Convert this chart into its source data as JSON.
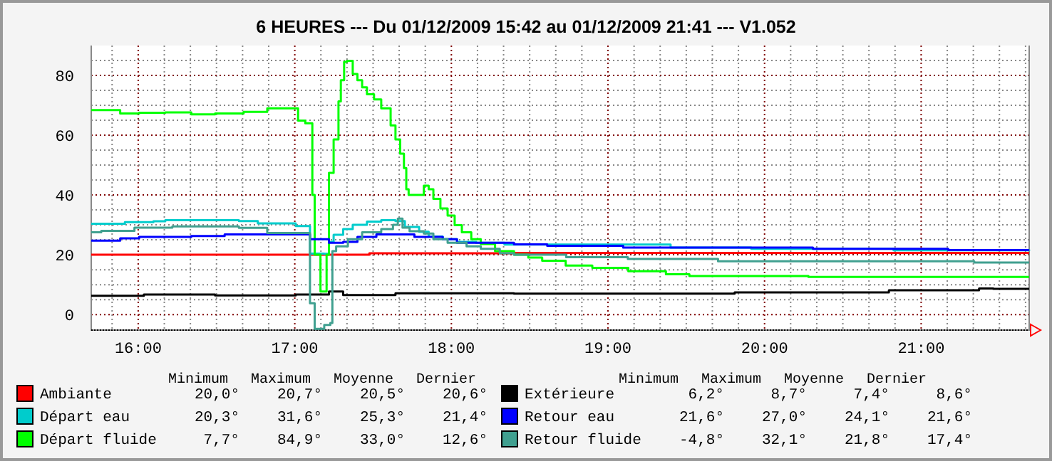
{
  "chart_data": {
    "type": "step",
    "title": "6 HEURES --- Du 01/12/2009 15:42 au 01/12/2009 21:41 --- V1.052",
    "xlim": [
      15.7,
      21.69
    ],
    "ylim": [
      -5.2,
      90
    ],
    "xticks": [
      {
        "value": 15.8333,
        "label": null
      },
      {
        "value": 16,
        "label": "16:00"
      },
      {
        "value": 16.1667,
        "label": null
      },
      {
        "value": 16.3333,
        "label": null
      },
      {
        "value": 16.5,
        "label": null
      },
      {
        "value": 16.6667,
        "label": null
      },
      {
        "value": 16.8333,
        "label": null
      },
      {
        "value": 17,
        "label": "17:00"
      },
      {
        "value": 17.1667,
        "label": null
      },
      {
        "value": 17.3333,
        "label": null
      },
      {
        "value": 17.5,
        "label": null
      },
      {
        "value": 17.6667,
        "label": null
      },
      {
        "value": 17.8333,
        "label": null
      },
      {
        "value": 18,
        "label": "18:00"
      },
      {
        "value": 18.1667,
        "label": null
      },
      {
        "value": 18.3333,
        "label": null
      },
      {
        "value": 18.5,
        "label": null
      },
      {
        "value": 18.6667,
        "label": null
      },
      {
        "value": 18.8333,
        "label": null
      },
      {
        "value": 19,
        "label": "19:00"
      },
      {
        "value": 19.1667,
        "label": null
      },
      {
        "value": 19.3333,
        "label": null
      },
      {
        "value": 19.5,
        "label": null
      },
      {
        "value": 19.6667,
        "label": null
      },
      {
        "value": 19.8333,
        "label": null
      },
      {
        "value": 20,
        "label": "20:00"
      },
      {
        "value": 20.1667,
        "label": null
      },
      {
        "value": 20.3333,
        "label": null
      },
      {
        "value": 20.5,
        "label": null
      },
      {
        "value": 20.6667,
        "label": null
      },
      {
        "value": 20.8333,
        "label": null
      },
      {
        "value": 21,
        "label": "21:00"
      },
      {
        "value": 21.1667,
        "label": null
      },
      {
        "value": 21.3333,
        "label": null
      },
      {
        "value": 21.5,
        "label": null
      },
      {
        "value": 21.6667,
        "label": null
      }
    ],
    "yticks": [
      0,
      {
        "value": 5,
        "label": null
      },
      {
        "value": 10,
        "label": null
      },
      {
        "value": 15,
        "label": null
      },
      20,
      {
        "value": 25,
        "label": null
      },
      {
        "value": 30,
        "label": null
      },
      {
        "value": 35,
        "label": null
      },
      40,
      {
        "value": 45,
        "label": null
      },
      {
        "value": 50,
        "label": null
      },
      {
        "value": 55,
        "label": null
      },
      60,
      {
        "value": 65,
        "label": null
      },
      {
        "value": 70,
        "label": null
      },
      {
        "value": 75,
        "label": null
      },
      80,
      {
        "value": 85,
        "label": null
      }
    ],
    "grid": true,
    "legend": "bottom",
    "annotations": [
      "Minimum",
      "Maximum",
      "Moyenne",
      "Dernier",
      "20,0°",
      "20,7°",
      "20,5°",
      "20,6°",
      "20,3°",
      "31,6°",
      "25,3°",
      "21,4°",
      "7,7°",
      "84,9°",
      "33,0°",
      "12,6°",
      "6,2°",
      "8,7°",
      "7,4°",
      "8,6°",
      "21,6°",
      "27,0°",
      "24,1°",
      "21,6°",
      "-4,8°",
      "32,1°",
      "21,8°",
      "17,4°"
    ],
    "series": [
      {
        "name": "Ambiante",
        "color": "#ff0000",
        "x": [
          15.7,
          17.476,
          18.4,
          21.69
        ],
        "values": [
          20.0,
          20.5,
          20.6,
          20.6
        ]
      },
      {
        "name": "Départ eau",
        "color": "#00cccc",
        "x": [
          15.7,
          15.915,
          16.097,
          16.173,
          16.643,
          16.764,
          17.006,
          17.097,
          17.188,
          17.218,
          17.248,
          17.309,
          17.37,
          17.461,
          17.552,
          17.643,
          17.703,
          17.794,
          17.855,
          17.945,
          18.036,
          18.158,
          18.339,
          19.4,
          19.915,
          20.824,
          21.69
        ],
        "values": [
          30.4,
          30.9,
          31.2,
          31.6,
          31.3,
          30.5,
          29.6,
          20.4,
          20.3,
          24.3,
          26.7,
          28.6,
          30,
          31.1,
          31.6,
          31.3,
          29.3,
          27.7,
          26.1,
          25.2,
          24.3,
          24,
          23.4,
          22.4,
          22,
          21.5,
          21.4
        ]
      },
      {
        "name": "Départ fluide",
        "color": "#00ff00",
        "x": [
          15.7,
          15.885,
          16.006,
          16.173,
          16.339,
          16.491,
          16.673,
          16.824,
          17.021,
          17.067,
          17.112,
          17.127,
          17.164,
          17.203,
          17.218,
          17.248,
          17.279,
          17.294,
          17.315,
          17.333,
          17.37,
          17.4,
          17.43,
          17.461,
          17.506,
          17.552,
          17.612,
          17.643,
          17.673,
          17.697,
          17.712,
          17.727,
          17.764,
          17.824,
          17.855,
          17.885,
          17.93,
          17.976,
          18.021,
          18.067,
          18.127,
          18.188,
          18.279,
          18.4,
          18.491,
          18.58,
          18.73,
          18.9,
          19.13,
          19.37,
          19.52,
          20.28,
          21.69
        ],
        "values": [
          68.4,
          67.3,
          67.5,
          67.6,
          67,
          67.3,
          67.8,
          69,
          64.9,
          64,
          40,
          20,
          7.7,
          20,
          47.4,
          58.6,
          71.3,
          78.4,
          84.5,
          84.9,
          80.5,
          78.4,
          76,
          73.7,
          72,
          69,
          63.3,
          58.6,
          53.8,
          49,
          41.9,
          40,
          40,
          43.1,
          41.9,
          38.7,
          35.5,
          33.1,
          29.9,
          27.5,
          25.2,
          23.6,
          21.2,
          20,
          19.1,
          18,
          16.4,
          15.6,
          14.5,
          13.5,
          12.9,
          12.6,
          12.6
        ]
      },
      {
        "name": "Extérieure",
        "color": "#000000",
        "x": [
          15.7,
          16.036,
          16.491,
          17.006,
          17.218,
          17.309,
          17.643,
          18.4,
          19.809,
          20.794,
          21.37,
          21.461,
          21.69
        ],
        "values": [
          6.3,
          6.7,
          6.4,
          6.7,
          7.7,
          6.5,
          7.1,
          7.0,
          7.4,
          8.1,
          8.7,
          8.6,
          8.6
        ]
      },
      {
        "name": "Retour eau",
        "color": "#0000ff",
        "x": [
          15.7,
          15.885,
          16.006,
          16.339,
          16.552,
          17.097,
          17.218,
          17.309,
          17.4,
          17.521,
          17.764,
          17.945,
          18.036,
          18.4,
          18.612,
          19.097,
          20.309,
          21.173,
          21.69
        ],
        "values": [
          24.7,
          25.5,
          26,
          26.3,
          26.8,
          25.2,
          24,
          24.3,
          26,
          26.8,
          26,
          25.2,
          24,
          23.5,
          23,
          22.4,
          22,
          21.6,
          21.6
        ]
      },
      {
        "name": "Retour fluide",
        "color": "#40a090",
        "x": [
          15.7,
          15.764,
          15.976,
          16.218,
          16.643,
          16.824,
          17.097,
          17.127,
          17.188,
          17.227,
          17.24,
          17.264,
          17.339,
          17.43,
          17.552,
          17.627,
          17.658,
          17.688,
          17.733,
          17.824,
          17.885,
          17.976,
          18.097,
          18.188,
          18.309,
          18.4,
          18.733,
          19.127,
          19.703,
          21.339,
          21.69
        ],
        "values": [
          27.5,
          28,
          29.1,
          29.5,
          29,
          27.3,
          3.8,
          -4.8,
          -3.5,
          -2.8,
          21.2,
          22.8,
          25.2,
          27.5,
          28.6,
          30,
          32.1,
          29.1,
          27.9,
          27.1,
          25.2,
          24,
          22.8,
          22,
          20.5,
          20,
          19.2,
          18.6,
          17.8,
          17.4,
          17.4
        ]
      }
    ]
  }
}
